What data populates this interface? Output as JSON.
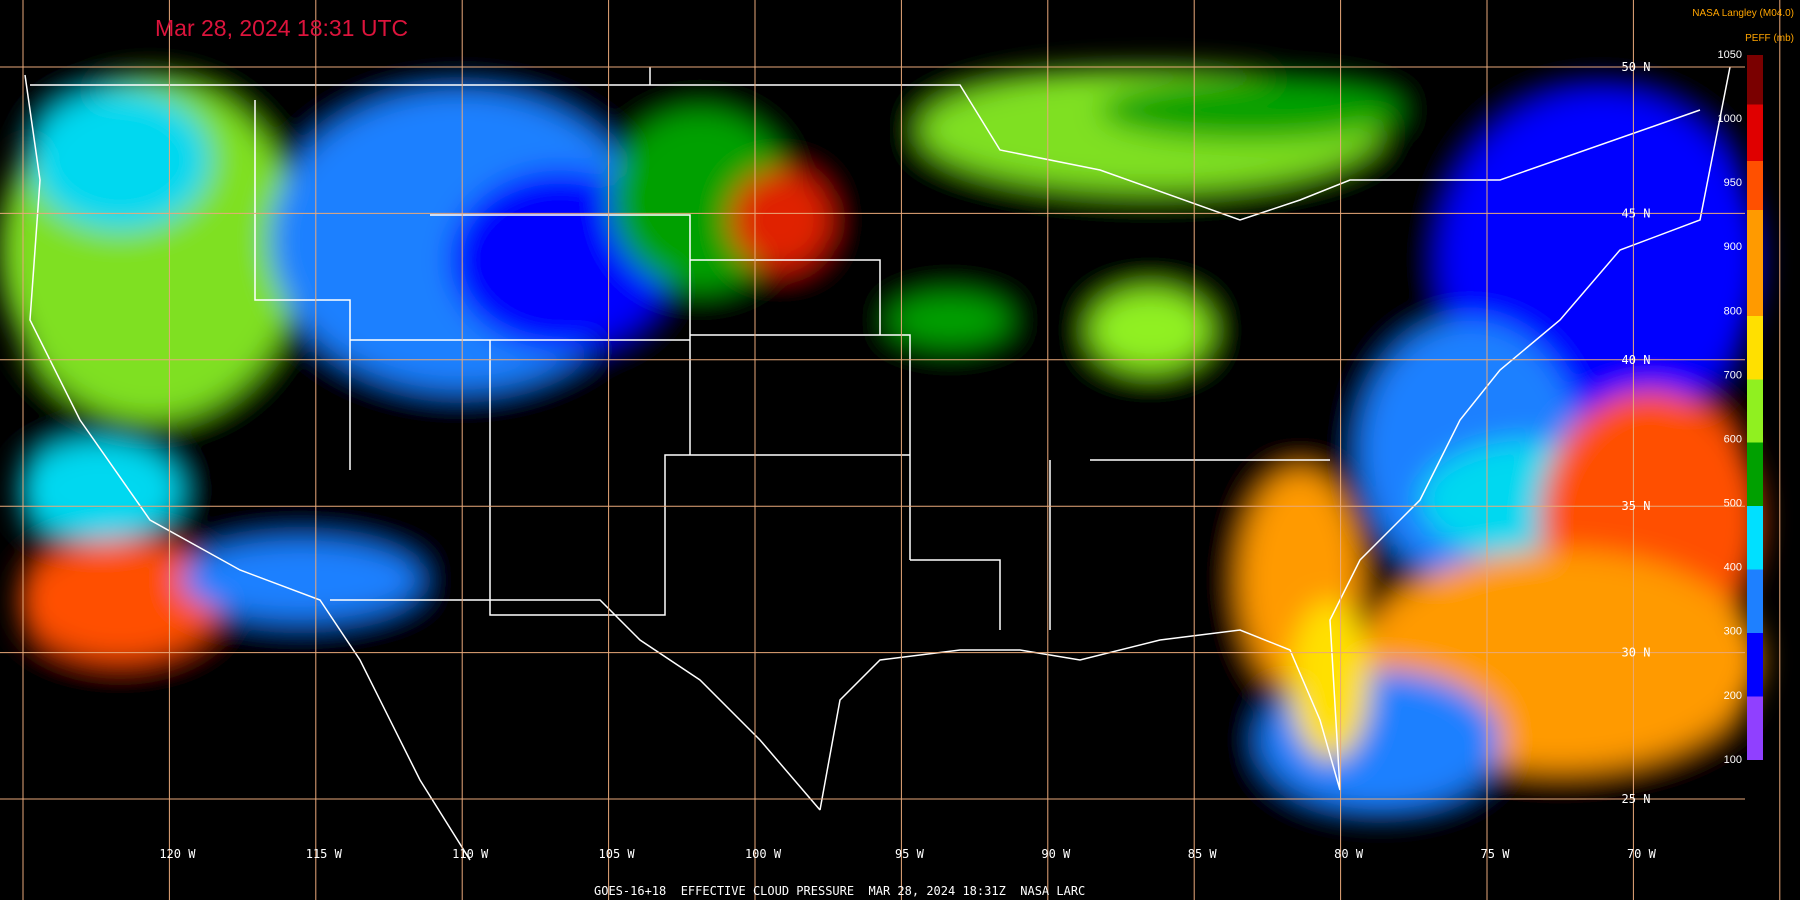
{
  "header": {
    "title": "Mar 28, 2024 18:31 UTC",
    "credit": "NASA Langley (M04.0)"
  },
  "colorbar": {
    "title": "PEFF (mb)",
    "labels": [
      1050,
      1000,
      950,
      900,
      800,
      700,
      600,
      500,
      400,
      300,
      200,
      100
    ]
  },
  "grid": {
    "lat_labels": [
      "50 N",
      "45 N",
      "40 N",
      "35 N",
      "30 N",
      "25 N"
    ],
    "lon_labels": [
      "120 W",
      "115 W",
      "110 W",
      "105 W",
      "100 W",
      "95 W",
      "90 W",
      "85 W",
      "80 W",
      "75 W",
      "70 W"
    ]
  },
  "footer": "GOES-16+18  EFFECTIVE CLOUD PRESSURE  MAR 28, 2024 18:31Z  NASA LARC"
}
